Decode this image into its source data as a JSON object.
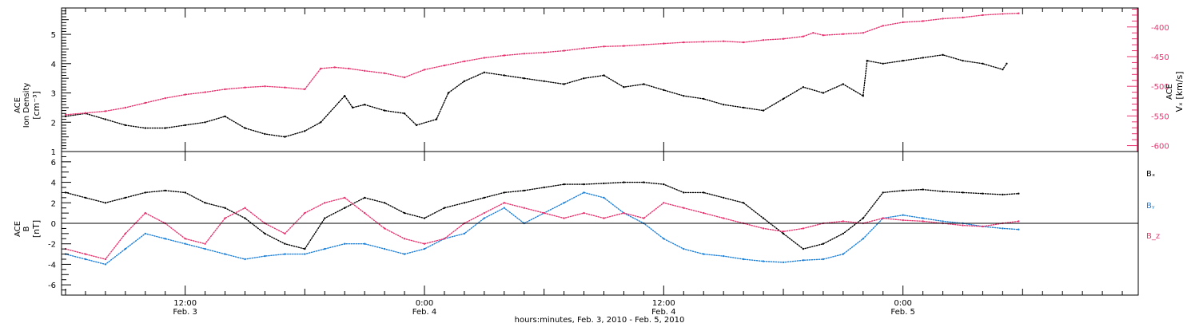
{
  "colors": {
    "density": "#000000",
    "speed": "#e8336e",
    "bx": "#000000",
    "by": "#1a7fd8",
    "bz": "#e8336e",
    "axis": "#000000"
  },
  "x_axis": {
    "ticks": [
      {
        "hours": 12,
        "time": "12:00",
        "date": "Feb. 3"
      },
      {
        "hours": 24,
        "time": "0:00",
        "date": "Feb. 4"
      },
      {
        "hours": 36,
        "time": "12:00",
        "date": "Feb. 4"
      },
      {
        "hours": 48,
        "time": "0:00",
        "date": "Feb. 5"
      }
    ],
    "label": "hours:minutes, Feb.  3, 2010 - Feb.  5, 2010"
  },
  "chart_data": [
    {
      "type": "scatter",
      "panel": "top",
      "ylabel_left": [
        "ACE",
        "Ion Density",
        "[cm⁻³]"
      ],
      "ylabel_right": [
        "ACE",
        "Vₓ [km/s]"
      ],
      "xlim_hours": [
        5.8,
        59.8
      ],
      "ylim_left": [
        1,
        5.9
      ],
      "yticks_left": [
        1,
        2,
        3,
        4,
        5
      ],
      "ylim_right": [
        -610,
        -368
      ],
      "yticks_right": [
        -600,
        -550,
        -500,
        -450,
        -400
      ],
      "series": [
        {
          "axis": "left",
          "color": "density",
          "x": [
            6.0,
            7.0,
            8.0,
            9.0,
            10.0,
            11.0,
            12.0,
            13.0,
            14.0,
            15.0,
            16.0,
            17.0,
            18.0,
            18.8,
            20.0,
            20.4,
            21.0,
            22.0,
            23.0,
            23.6,
            24.6,
            25.2,
            26.0,
            27.0,
            28.0,
            29.0,
            30.0,
            31.0,
            32.0,
            33.0,
            34.0,
            35.0,
            36.0,
            37.0,
            38.0,
            39.0,
            40.0,
            41.0,
            42.0,
            43.0,
            44.0,
            45.0,
            46.0,
            46.2,
            47.0,
            48.0,
            49.0,
            50.0,
            51.0,
            52.0,
            53.0,
            53.2
          ],
          "y": [
            2.2,
            2.3,
            2.1,
            1.9,
            1.8,
            1.8,
            1.9,
            2.0,
            2.2,
            1.8,
            1.6,
            1.5,
            1.7,
            2.0,
            2.9,
            2.5,
            2.6,
            2.4,
            2.3,
            1.9,
            2.1,
            3.0,
            3.4,
            3.7,
            3.6,
            3.5,
            3.4,
            3.3,
            3.5,
            3.6,
            3.2,
            3.3,
            3.1,
            2.9,
            2.8,
            2.6,
            2.5,
            2.4,
            2.8,
            3.2,
            3.0,
            3.3,
            2.9,
            4.1,
            4.0,
            4.1,
            4.2,
            4.3,
            4.1,
            4.0,
            3.8,
            4.0
          ]
        },
        {
          "axis": "right",
          "color": "speed",
          "x": [
            6.0,
            7.0,
            8.0,
            9.0,
            10.0,
            11.0,
            12.0,
            13.0,
            14.0,
            15.0,
            16.0,
            17.0,
            18.0,
            18.8,
            19.5,
            20.2,
            21.0,
            22.0,
            23.0,
            24.0,
            25.0,
            26.0,
            27.0,
            28.0,
            29.0,
            30.0,
            31.0,
            32.0,
            33.0,
            34.0,
            35.0,
            36.0,
            37.0,
            38.0,
            39.0,
            40.0,
            41.0,
            42.0,
            43.0,
            43.5,
            44.0,
            45.0,
            46.0,
            47.0,
            48.0,
            49.0,
            50.0,
            51.0,
            52.0,
            53.0,
            53.8
          ],
          "y": [
            -548,
            -545,
            -542,
            -536,
            -528,
            -520,
            -514,
            -510,
            -505,
            -502,
            -500,
            -502,
            -505,
            -470,
            -468,
            -470,
            -474,
            -478,
            -485,
            -472,
            -465,
            -458,
            -452,
            -448,
            -445,
            -443,
            -440,
            -436,
            -433,
            -432,
            -430,
            -428,
            -426,
            -425,
            -424,
            -426,
            -422,
            -420,
            -416,
            -410,
            -414,
            -412,
            -410,
            -398,
            -392,
            -390,
            -386,
            -384,
            -380,
            -378,
            -377
          ]
        }
      ]
    },
    {
      "type": "scatter",
      "panel": "bottom",
      "ylabel_left": [
        "ACE",
        "B",
        "[nT]"
      ],
      "xlim_hours": [
        5.8,
        59.8
      ],
      "ylim": [
        -7,
        7
      ],
      "yticks": [
        -6,
        -4,
        -2,
        0,
        2,
        4,
        6
      ],
      "series": [
        {
          "name": "Bₓ",
          "color": "bx",
          "x": [
            6.0,
            7.0,
            8.0,
            9.0,
            10.0,
            11.0,
            12.0,
            13.0,
            14.0,
            15.0,
            16.0,
            17.0,
            18.0,
            19.0,
            20.0,
            21.0,
            22.0,
            23.0,
            24.0,
            25.0,
            26.0,
            27.0,
            28.0,
            29.0,
            30.0,
            31.0,
            32.0,
            33.0,
            34.0,
            35.0,
            36.0,
            37.0,
            38.0,
            39.0,
            40.0,
            41.0,
            42.0,
            43.0,
            44.0,
            45.0,
            46.0,
            47.0,
            48.0,
            49.0,
            50.0,
            51.0,
            52.0,
            53.0,
            53.8
          ],
          "y": [
            3.0,
            2.5,
            2.0,
            2.5,
            3.0,
            3.2,
            3.0,
            2.0,
            1.5,
            0.5,
            -1.0,
            -2.0,
            -2.5,
            0.5,
            1.5,
            2.5,
            2.0,
            1.0,
            0.5,
            1.5,
            2.0,
            2.5,
            3.0,
            3.2,
            3.5,
            3.8,
            3.8,
            3.9,
            4.0,
            4.0,
            3.8,
            3.0,
            3.0,
            2.5,
            2.0,
            0.5,
            -1.0,
            -2.5,
            -2.0,
            -1.0,
            0.5,
            3.0,
            3.2,
            3.3,
            3.1,
            3.0,
            2.9,
            2.8,
            2.9
          ]
        },
        {
          "name": "Bᵧ",
          "color": "by",
          "x": [
            6.0,
            7.0,
            8.0,
            9.0,
            10.0,
            11.0,
            12.0,
            13.0,
            14.0,
            15.0,
            16.0,
            17.0,
            18.0,
            19.0,
            20.0,
            21.0,
            22.0,
            23.0,
            24.0,
            25.0,
            26.0,
            27.0,
            28.0,
            29.0,
            30.0,
            31.0,
            32.0,
            33.0,
            34.0,
            35.0,
            36.0,
            37.0,
            38.0,
            39.0,
            40.0,
            41.0,
            42.0,
            43.0,
            44.0,
            45.0,
            46.0,
            47.0,
            48.0,
            49.0,
            50.0,
            51.0,
            52.0,
            53.0,
            53.8
          ],
          "y": [
            -3.0,
            -3.5,
            -4.0,
            -2.5,
            -1.0,
            -1.5,
            -2.0,
            -2.5,
            -3.0,
            -3.5,
            -3.2,
            -3.0,
            -3.0,
            -2.5,
            -2.0,
            -2.0,
            -2.5,
            -3.0,
            -2.5,
            -1.5,
            -1.0,
            0.5,
            1.5,
            0.0,
            1.0,
            2.0,
            3.0,
            2.5,
            1.0,
            0.0,
            -1.5,
            -2.5,
            -3.0,
            -3.2,
            -3.5,
            -3.7,
            -3.8,
            -3.6,
            -3.5,
            -3.0,
            -1.5,
            0.5,
            0.8,
            0.5,
            0.2,
            0.0,
            -0.3,
            -0.5,
            -0.6
          ]
        },
        {
          "name": "B_z",
          "color": "bz",
          "x": [
            6.0,
            7.0,
            8.0,
            9.0,
            10.0,
            11.0,
            12.0,
            13.0,
            14.0,
            15.0,
            16.0,
            17.0,
            18.0,
            19.0,
            20.0,
            21.0,
            22.0,
            23.0,
            24.0,
            25.0,
            26.0,
            27.0,
            28.0,
            29.0,
            30.0,
            31.0,
            32.0,
            33.0,
            34.0,
            35.0,
            36.0,
            37.0,
            38.0,
            39.0,
            40.0,
            41.0,
            42.0,
            43.0,
            44.0,
            45.0,
            46.0,
            47.0,
            48.0,
            49.0,
            50.0,
            51.0,
            52.0,
            53.0,
            53.8
          ],
          "y": [
            -2.5,
            -3.0,
            -3.5,
            -1.0,
            1.0,
            0.0,
            -1.5,
            -2.0,
            0.5,
            1.5,
            0.0,
            -1.0,
            1.0,
            2.0,
            2.5,
            1.0,
            -0.5,
            -1.5,
            -2.0,
            -1.5,
            0.0,
            1.0,
            2.0,
            1.5,
            1.0,
            0.5,
            1.0,
            0.5,
            1.0,
            0.5,
            2.0,
            1.5,
            1.0,
            0.5,
            0.0,
            -0.5,
            -0.8,
            -0.5,
            0.0,
            0.2,
            0.0,
            0.5,
            0.3,
            0.2,
            0.0,
            -0.2,
            -0.3,
            0.0,
            0.2
          ]
        }
      ]
    }
  ]
}
